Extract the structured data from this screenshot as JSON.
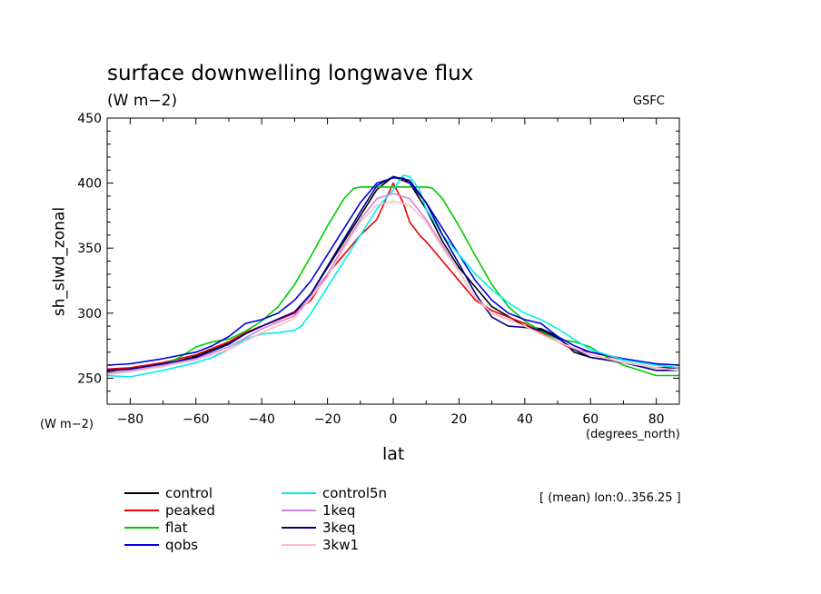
{
  "chart_data": {
    "type": "line",
    "title": "surface downwelling longwave flux",
    "units": "(W m−2)",
    "source_label": "GSFC",
    "ylabel": "sh_slwd_zonal",
    "y_units": "(W m−2)",
    "xlabel": "lat",
    "x_units": "(degrees_north)",
    "stat_label": "[ (mean) lon:0..356.25 ]",
    "xlim": [
      -87,
      87
    ],
    "ylim": [
      230,
      450
    ],
    "x_ticks": [
      -80,
      -60,
      -40,
      -20,
      0,
      20,
      40,
      60,
      80
    ],
    "y_ticks": [
      250,
      300,
      350,
      400,
      450
    ],
    "grid": false,
    "legend_position": "bottom",
    "series": [
      {
        "name": "control",
        "color": "#000000",
        "x": [
          -87,
          -80,
          -70,
          -60,
          -50,
          -45,
          -40,
          -30,
          -25,
          -20,
          -15,
          -10,
          -5,
          0,
          5,
          10,
          15,
          20,
          25,
          30,
          40,
          45,
          50,
          55,
          60,
          70,
          80,
          87
        ],
        "y": [
          255,
          255,
          260,
          267,
          277,
          285,
          290,
          300,
          315,
          335,
          355,
          375,
          395,
          405,
          400,
          380,
          355,
          335,
          320,
          305,
          290,
          288,
          282,
          270,
          266,
          262,
          258,
          258
        ]
      },
      {
        "name": "peaked",
        "color": "#ee0000",
        "x": [
          -87,
          -80,
          -70,
          -60,
          -50,
          -45,
          -40,
          -30,
          -25,
          -20,
          -15,
          -10,
          -5,
          0,
          3,
          5,
          8,
          10,
          15,
          20,
          25,
          30,
          40,
          45,
          50,
          55,
          60,
          70,
          80,
          87
        ],
        "y": [
          257,
          258,
          262,
          268,
          278,
          285,
          290,
          300,
          310,
          330,
          345,
          360,
          372,
          400,
          385,
          370,
          360,
          355,
          340,
          325,
          310,
          302,
          292,
          285,
          278,
          272,
          270,
          264,
          260,
          258
        ]
      },
      {
        "name": "flat",
        "color": "#00cc00",
        "x": [
          -87,
          -80,
          -70,
          -65,
          -60,
          -55,
          -50,
          -45,
          -40,
          -35,
          -30,
          -25,
          -20,
          -15,
          -12,
          -10,
          0,
          10,
          12,
          15,
          20,
          25,
          30,
          35,
          40,
          45,
          50,
          55,
          60,
          65,
          70,
          80,
          87
        ],
        "y": [
          253,
          255,
          260,
          266,
          274,
          278,
          280,
          286,
          294,
          305,
          322,
          344,
          367,
          388,
          396,
          397,
          397,
          397,
          396,
          388,
          367,
          344,
          322,
          305,
          294,
          286,
          280,
          278,
          274,
          266,
          260,
          252,
          252
        ]
      },
      {
        "name": "qobs",
        "color": "#0000dd",
        "x": [
          -87,
          -80,
          -70,
          -60,
          -55,
          -50,
          -45,
          -40,
          -35,
          -30,
          -25,
          -20,
          -15,
          -10,
          -5,
          0,
          3,
          5,
          10,
          15,
          20,
          25,
          30,
          35,
          40,
          45,
          50,
          55,
          60,
          70,
          80,
          87
        ],
        "y": [
          260,
          261,
          265,
          270,
          275,
          282,
          292,
          295,
          300,
          310,
          325,
          345,
          365,
          385,
          400,
          404,
          404,
          400,
          385,
          365,
          345,
          325,
          310,
          300,
          295,
          292,
          282,
          275,
          270,
          265,
          261,
          260
        ]
      },
      {
        "name": "control5n",
        "color": "#00eeee",
        "x": [
          -87,
          -80,
          -70,
          -60,
          -55,
          -50,
          -45,
          -40,
          -35,
          -30,
          -28,
          -25,
          -20,
          -15,
          -10,
          -5,
          0,
          3,
          5,
          8,
          10,
          15,
          20,
          25,
          30,
          35,
          40,
          45,
          50,
          60,
          70,
          80,
          87
        ],
        "y": [
          252,
          251,
          256,
          262,
          266,
          272,
          280,
          284,
          285,
          287,
          290,
          300,
          320,
          340,
          360,
          380,
          395,
          406,
          405,
          395,
          380,
          360,
          345,
          330,
          318,
          308,
          300,
          295,
          288,
          272,
          264,
          260,
          258
        ]
      },
      {
        "name": "1keq",
        "color": "#cc88dd",
        "x": [
          -87,
          -80,
          -70,
          -60,
          -50,
          -40,
          -30,
          -20,
          -15,
          -10,
          -5,
          0,
          5,
          10,
          15,
          20,
          25,
          30,
          40,
          50,
          60,
          70,
          80,
          87
        ],
        "y": [
          254,
          256,
          260,
          265,
          274,
          288,
          298,
          330,
          352,
          372,
          388,
          392,
          388,
          372,
          352,
          332,
          312,
          300,
          290,
          278,
          268,
          262,
          258,
          256
        ]
      },
      {
        "name": "3keq",
        "color": "#000088",
        "x": [
          -87,
          -80,
          -70,
          -60,
          -50,
          -45,
          -40,
          -30,
          -25,
          -20,
          -15,
          -10,
          -5,
          0,
          5,
          10,
          15,
          20,
          25,
          30,
          35,
          40,
          45,
          50,
          55,
          60,
          70,
          80,
          87
        ],
        "y": [
          256,
          257,
          261,
          266,
          276,
          284,
          290,
          301,
          315,
          336,
          357,
          378,
          398,
          405,
          402,
          385,
          360,
          338,
          315,
          297,
          290,
          289,
          287,
          281,
          272,
          266,
          262,
          256,
          256
        ]
      },
      {
        "name": "3kw1",
        "color": "#ffbbcc",
        "x": [
          -87,
          -80,
          -70,
          -60,
          -50,
          -40,
          -30,
          -20,
          -15,
          -10,
          -5,
          0,
          5,
          10,
          15,
          20,
          25,
          30,
          40,
          50,
          60,
          70,
          80,
          87
        ],
        "y": [
          253,
          255,
          259,
          264,
          272,
          285,
          296,
          328,
          350,
          370,
          383,
          386,
          383,
          370,
          350,
          332,
          312,
          300,
          290,
          278,
          268,
          262,
          258,
          256
        ]
      }
    ]
  }
}
